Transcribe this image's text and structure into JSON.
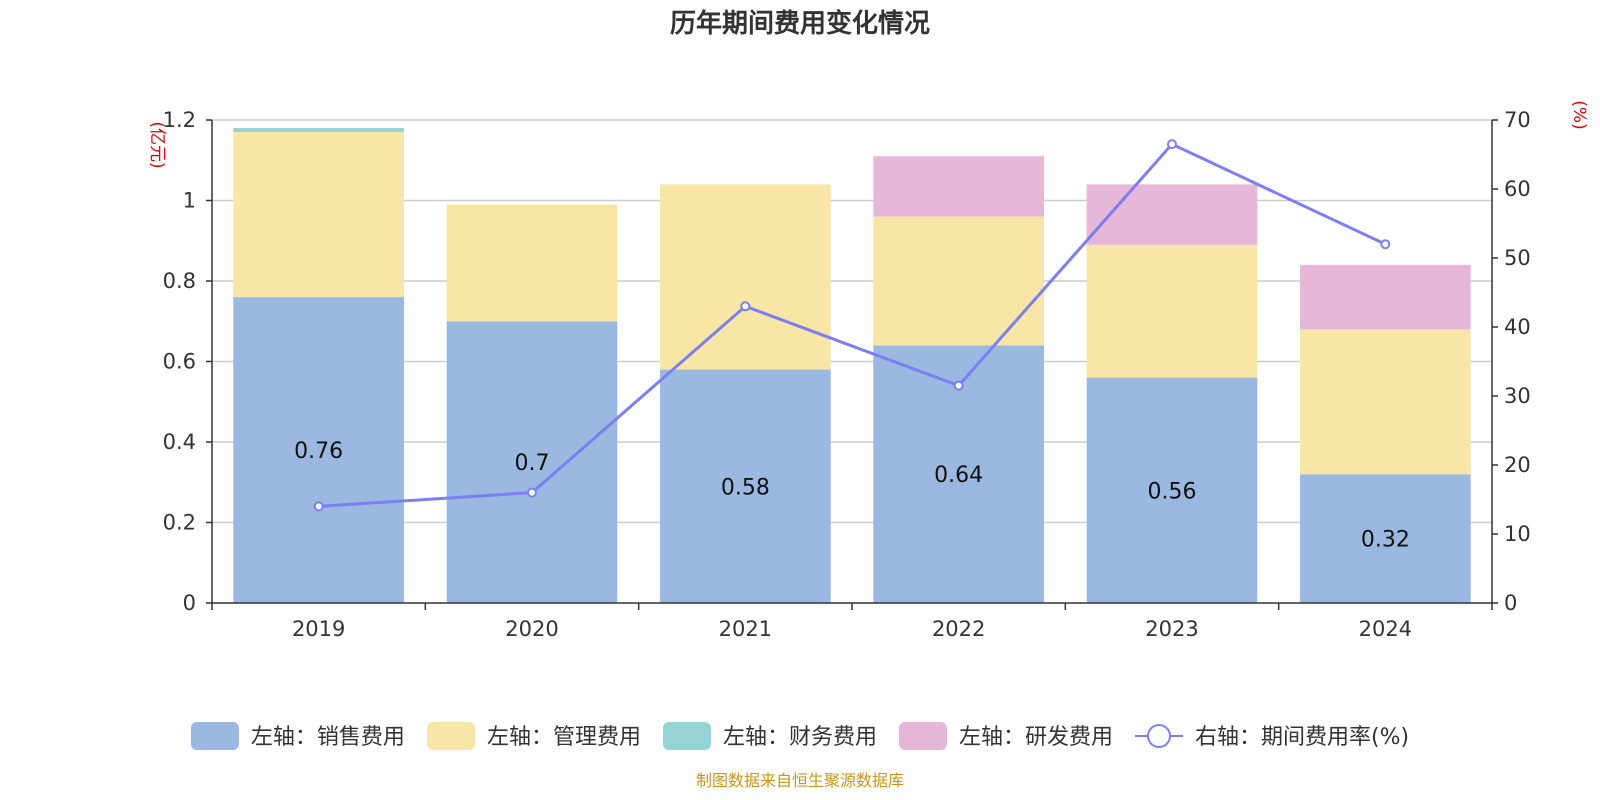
{
  "chart_data": {
    "type": "bar",
    "title": "历年期间费用变化情况",
    "categories": [
      "2019",
      "2020",
      "2021",
      "2022",
      "2023",
      "2024"
    ],
    "left_axis": {
      "unit": "(亿元)",
      "ylim": [
        0,
        1.2
      ],
      "ticks": [
        "0",
        "0.2",
        "0.4",
        "0.6",
        "0.8",
        "1",
        "1.2"
      ]
    },
    "right_axis": {
      "unit": "(%)",
      "ylim": [
        0,
        70
      ],
      "ticks": [
        "0",
        "10",
        "20",
        "30",
        "40",
        "50",
        "60",
        "70"
      ]
    },
    "series": [
      {
        "name": "左轴：销售费用",
        "type": "bar",
        "axis": "left",
        "color": "#9bb8e1",
        "values": [
          0.76,
          0.7,
          0.58,
          0.64,
          0.56,
          0.32
        ],
        "labels": [
          "0.76",
          "0.7",
          "0.58",
          "0.64",
          "0.56",
          "0.32"
        ]
      },
      {
        "name": "左轴：管理费用",
        "type": "bar",
        "axis": "left",
        "color": "#f7e6a6",
        "values": [
          0.41,
          0.29,
          0.46,
          0.32,
          0.33,
          0.36
        ]
      },
      {
        "name": "左轴：财务费用",
        "type": "bar",
        "axis": "left",
        "color": "#95d3d4",
        "values": [
          0.01,
          0,
          0,
          0,
          0,
          0
        ]
      },
      {
        "name": "左轴：研发费用",
        "type": "bar",
        "axis": "left",
        "color": "#e6b7d8",
        "values": [
          0,
          0,
          0,
          0.15,
          0.15,
          0.16
        ]
      },
      {
        "name": "右轴：期间费用率(%)",
        "type": "line",
        "axis": "right",
        "color": "#7b7ff0",
        "values": [
          14,
          16,
          43,
          31.5,
          66.5,
          52
        ]
      }
    ],
    "grid": true,
    "legend_position": "bottom"
  },
  "footer": "制图数据来自恒生聚源数据库"
}
